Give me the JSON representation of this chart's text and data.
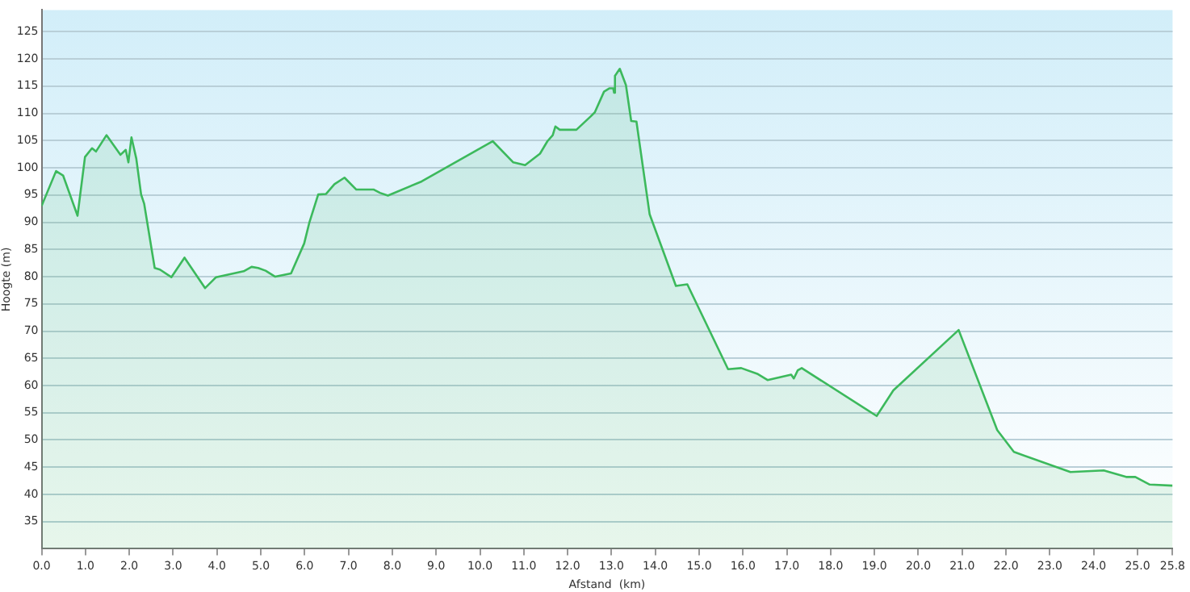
{
  "chart_data": {
    "type": "area",
    "xlabel": "Afstand  (km)",
    "ylabel": "Hoogte (m)",
    "x": [
      0,
      0.33,
      0.49,
      0.82,
      0.99,
      1.15,
      1.24,
      1.48,
      1.8,
      1.92,
      1.98,
      2.05,
      2.16,
      2.27,
      2.34,
      2.58,
      2.7,
      2.96,
      3.26,
      3.73,
      3.98,
      4.61,
      4.79,
      4.94,
      5.11,
      5.33,
      5.69,
      5.99,
      6.11,
      6.31,
      6.49,
      6.68,
      6.91,
      7.18,
      7.58,
      7.72,
      7.9,
      8.67,
      10.29,
      10.76,
      11.03,
      11.37,
      11.54,
      11.66,
      11.72,
      11.82,
      12.2,
      12.52,
      12.62,
      12.83,
      12.95,
      13.04,
      13.06,
      13.08,
      13.19,
      13.33,
      13.45,
      13.57,
      13.87,
      14.47,
      14.73,
      15.66,
      15.96,
      16.34,
      16.56,
      17.1,
      17.16,
      17.25,
      17.34,
      19.05,
      19.43,
      20.92,
      21.8,
      22.18,
      23.47,
      24.23,
      24.74,
      24.95,
      25.28,
      25.8
    ],
    "series": [
      {
        "color": "#3cb95c",
        "values": [
          93,
          99.4,
          98.6,
          91.2,
          102,
          103.6,
          103,
          106,
          102.4,
          103.3,
          101,
          105.6,
          101.7,
          95.1,
          93.4,
          81.6,
          81.3,
          79.9,
          83.5,
          77.9,
          79.9,
          81,
          81.8,
          81.6,
          81.1,
          80,
          80.6,
          86.1,
          90,
          95.1,
          95.2,
          97,
          98.2,
          96,
          96,
          95.4,
          94.9,
          97.5,
          104.9,
          101,
          100.5,
          102.6,
          104.9,
          106,
          107.6,
          107,
          107,
          109.4,
          110.2,
          114,
          114.6,
          114.6,
          113.8,
          116.9,
          118.2,
          115.2,
          108.6,
          108.5,
          91.5,
          78.3,
          78.6,
          63,
          63.2,
          62.1,
          61,
          62,
          61.3,
          62.8,
          63.2,
          54.4,
          59.1,
          70.2,
          51.8,
          47.8,
          44.1,
          44.4,
          43.2,
          43.2,
          41.8,
          41.6
        ]
      }
    ],
    "xlim": [
      0,
      25.8
    ],
    "xticks": [
      {
        "value": 0,
        "label": "0.0"
      },
      {
        "value": 1,
        "label": "1.0"
      },
      {
        "value": 2,
        "label": "2.0"
      },
      {
        "value": 3,
        "label": "3.0"
      },
      {
        "value": 4,
        "label": "4.0"
      },
      {
        "value": 5,
        "label": "5.0"
      },
      {
        "value": 6,
        "label": "6.0"
      },
      {
        "value": 7,
        "label": "7.0"
      },
      {
        "value": 8,
        "label": "8.0"
      },
      {
        "value": 9,
        "label": "9.0"
      },
      {
        "value": 10,
        "label": "10.0"
      },
      {
        "value": 11,
        "label": "11.0"
      },
      {
        "value": 12,
        "label": "12.0"
      },
      {
        "value": 13,
        "label": "13.0"
      },
      {
        "value": 14,
        "label": "14.0"
      },
      {
        "value": 15,
        "label": "15.0"
      },
      {
        "value": 16,
        "label": "16.0"
      },
      {
        "value": 17,
        "label": "17.0"
      },
      {
        "value": 18,
        "label": "18.0"
      },
      {
        "value": 19,
        "label": "19.0"
      },
      {
        "value": 20,
        "label": "20.0"
      },
      {
        "value": 21,
        "label": "21.0"
      },
      {
        "value": 22,
        "label": "22.0"
      },
      {
        "value": 23,
        "label": "23.0"
      },
      {
        "value": 24,
        "label": "24.0"
      },
      {
        "value": 25,
        "label": "25.0"
      },
      25.8
    ],
    "ylim": [
      30,
      129
    ],
    "yticks": [
      35,
      40,
      45,
      50,
      55,
      60,
      65,
      70,
      75,
      80,
      85,
      90,
      95,
      100,
      105,
      110,
      115,
      120,
      125
    ],
    "grid": "y",
    "legend": false,
    "marker": "none",
    "line_style": "solid"
  }
}
